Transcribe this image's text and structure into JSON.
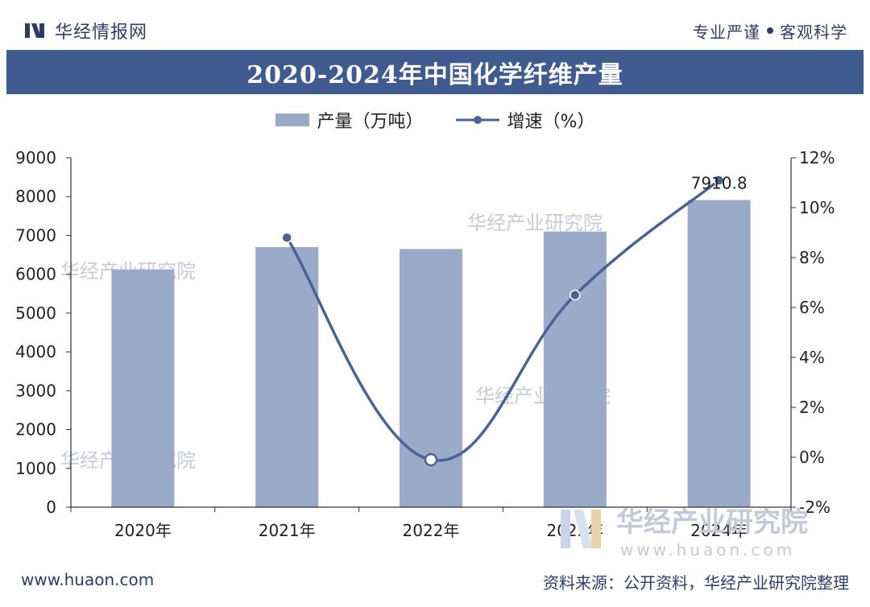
{
  "header": {
    "brand": "华经情报网",
    "slogan_left": "专业严谨",
    "slogan_right": "客观科学"
  },
  "chart_data": {
    "type": "bar",
    "title": "2020-2024年中国化学纤维产量",
    "categories": [
      "2020年",
      "2021年",
      "2022年",
      "2023年",
      "2024年"
    ],
    "series": [
      {
        "name": "产量（万吨）",
        "type": "bar",
        "axis": "left",
        "values": [
          6125,
          6700,
          6650,
          7100,
          7910.8
        ]
      },
      {
        "name": "增速（%）",
        "type": "line",
        "axis": "right",
        "values": [
          null,
          8.8,
          -0.1,
          6.5,
          11.1
        ]
      }
    ],
    "y_left": {
      "min": 0,
      "max": 9000,
      "ticks": [
        "0",
        "1000",
        "2000",
        "3000",
        "4000",
        "5000",
        "6000",
        "7000",
        "8000",
        "9000"
      ]
    },
    "y_right": {
      "min": -2,
      "max": 12,
      "ticks": [
        "-2%",
        "0%",
        "2%",
        "4%",
        "6%",
        "8%",
        "10%",
        "12%"
      ]
    },
    "data_labels": [
      {
        "category": "2024年",
        "text": "7910.8"
      }
    ],
    "colors": {
      "bar": "#9aaac8",
      "line": "#4a6393",
      "title_bg": "#3f5b8f"
    }
  },
  "watermark": {
    "name": "华经产业研究院",
    "url": "www.huaon.com"
  },
  "footer": {
    "site": "www.huaon.com",
    "source": "资料来源：公开资料，华经产业研究院整理"
  }
}
